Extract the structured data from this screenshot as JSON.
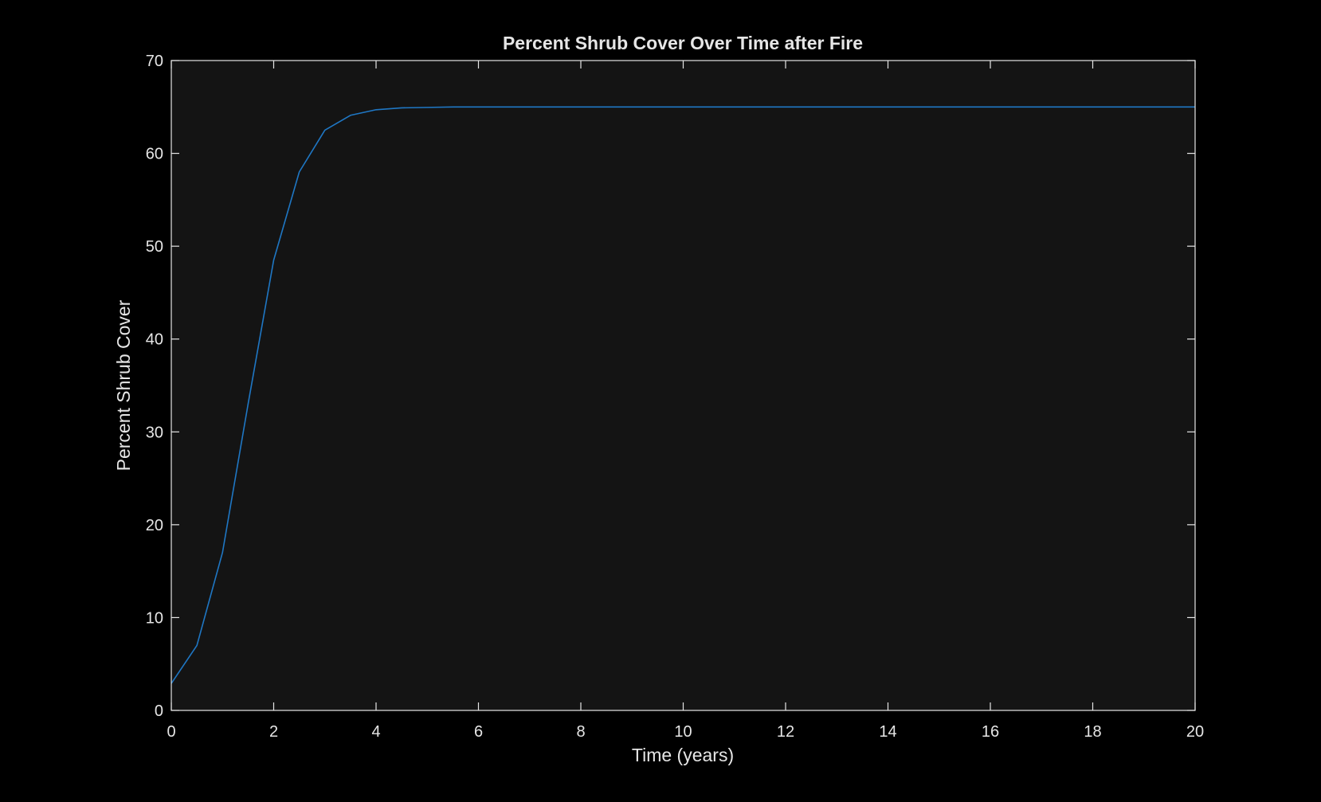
{
  "chart_data": {
    "type": "line",
    "title": "Percent Shrub Cover Over Time after Fire",
    "xlabel": "Time (years)",
    "ylabel": "Percent Shrub Cover",
    "xlim": [
      0,
      20
    ],
    "ylim": [
      0,
      70
    ],
    "xticks": [
      0,
      2,
      4,
      6,
      8,
      10,
      12,
      14,
      16,
      18,
      20
    ],
    "yticks": [
      0,
      10,
      20,
      30,
      40,
      50,
      60,
      70
    ],
    "grid": false,
    "legend": "none",
    "series": [
      {
        "color": "#1f77c4",
        "x": [
          0,
          0.5,
          1,
          1.5,
          2,
          2.5,
          3,
          3.5,
          4,
          4.5,
          5,
          5.5,
          6,
          7,
          8,
          9,
          10,
          11,
          12,
          13,
          14,
          15,
          16,
          17,
          18,
          19,
          20
        ],
        "y": [
          2.9,
          7.0,
          17.0,
          33.0,
          48.5,
          58.0,
          62.5,
          64.1,
          64.7,
          64.9,
          64.95,
          65.0,
          65.0,
          65.0,
          65.0,
          65.0,
          65.0,
          65.0,
          65.0,
          65.0,
          65.0,
          65.0,
          65.0,
          65.0,
          65.0,
          65.0,
          65.0
        ]
      }
    ]
  },
  "colors": {
    "figure_background": "#000000",
    "axes_background": "#141414",
    "axes_edge": "#e6e6e6",
    "text": "#e6e6e6",
    "line": "#1f77c4"
  }
}
